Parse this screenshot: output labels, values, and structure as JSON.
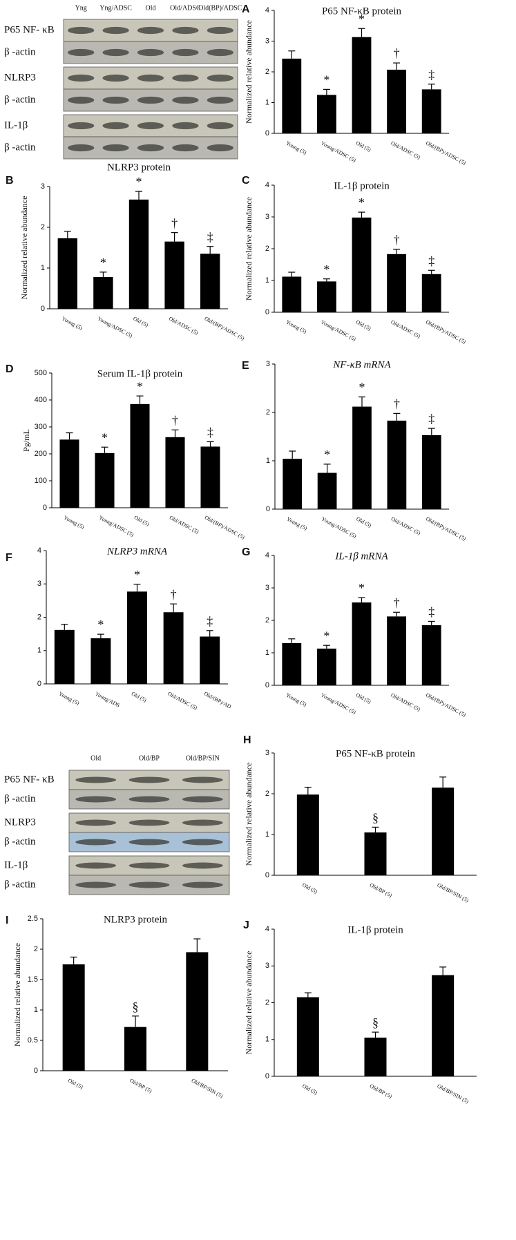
{
  "chart_data": [
    {
      "type": "bar",
      "panel": "A",
      "title": "P65 NF-κB protein",
      "ylabel": "Normalized relative abundance",
      "categories": [
        "Young (5)",
        "Young/ADSC (5)",
        "Old (5)",
        "Old/ADSC (5)",
        "Old/(BP)/ADSC (5)"
      ],
      "values": [
        2.43,
        1.25,
        3.13,
        2.07,
        1.43
      ],
      "errors": [
        0.25,
        0.18,
        0.28,
        0.22,
        0.17
      ],
      "annotations": [
        null,
        "*",
        "*",
        "†",
        "‡"
      ],
      "color": "#000000",
      "ylim": [
        0,
        4
      ],
      "yticks": [
        0,
        1,
        2,
        3,
        4
      ]
    },
    {
      "type": "bar",
      "panel": "B",
      "title": "NLRP3 protein",
      "ylabel": "Normalized relative abundance",
      "categories": [
        "Young (5)",
        "Young/ADSC (5)",
        "Old (5)",
        "Old/ADSC (5)",
        "Old/(BP)/ADSC (5)"
      ],
      "values": [
        1.73,
        0.78,
        2.68,
        1.65,
        1.35
      ],
      "errors": [
        0.17,
        0.12,
        0.2,
        0.22,
        0.18
      ],
      "annotations": [
        null,
        "*",
        "*",
        "†",
        "‡"
      ],
      "color": "#000000",
      "ylim": [
        0,
        3
      ],
      "yticks": [
        0,
        1,
        2,
        3
      ]
    },
    {
      "type": "bar",
      "panel": "C",
      "title": "IL-1β protein",
      "ylabel": "Normalized relative abundance",
      "categories": [
        "Young (5)",
        "Young/ADSC (5)",
        "Old (5)",
        "Old/ADSC (5)",
        "Old/(BP)/ADSC (5)"
      ],
      "values": [
        1.12,
        0.97,
        2.98,
        1.83,
        1.2
      ],
      "errors": [
        0.14,
        0.08,
        0.17,
        0.15,
        0.12
      ],
      "annotations": [
        null,
        "*",
        "*",
        "†",
        "‡"
      ],
      "color": "#000000",
      "ylim": [
        0,
        4
      ],
      "yticks": [
        0,
        1,
        2,
        3,
        4
      ]
    },
    {
      "type": "bar",
      "panel": "D",
      "title": "Serum IL-1β protein",
      "ylabel": "Pg/mL",
      "categories": [
        "Young (5)",
        "Young/ADSC (5)",
        "Old (5)",
        "Old/ADSC (5)",
        "Old/(BP)/ADSC (5)"
      ],
      "values": [
        253,
        203,
        385,
        262,
        227
      ],
      "errors": [
        25,
        22,
        30,
        27,
        18
      ],
      "annotations": [
        null,
        "*",
        "*",
        "†",
        "‡"
      ],
      "color": "#000000",
      "ylim": [
        0,
        500
      ],
      "yticks": [
        0,
        100,
        200,
        300,
        400,
        500
      ]
    },
    {
      "type": "bar",
      "panel": "E",
      "title": "NF-κB mRNA",
      "categories": [
        "Young (5)",
        "Young/ADSC (5)",
        "Old (5)",
        "Old/ADSC (5)",
        "Old/(BP)/ADSC (5)"
      ],
      "values": [
        1.04,
        0.75,
        2.12,
        1.83,
        1.53
      ],
      "errors": [
        0.16,
        0.18,
        0.2,
        0.15,
        0.14
      ],
      "annotations": [
        null,
        "*",
        "*",
        "†",
        "‡"
      ],
      "color": "#000000",
      "ylim": [
        0,
        3
      ],
      "yticks": [
        0,
        1,
        2,
        3
      ]
    },
    {
      "type": "bar",
      "panel": "F",
      "title": "NLRP3 mRNA",
      "categories": [
        "Young (5)",
        "Young/ADS",
        "Old (5)",
        "Old/ADSC (5)",
        "Old/(BP)/AD"
      ],
      "values": [
        1.62,
        1.37,
        2.77,
        2.15,
        1.42
      ],
      "errors": [
        0.17,
        0.12,
        0.22,
        0.25,
        0.18
      ],
      "annotations": [
        null,
        "*",
        "*",
        "†",
        "‡"
      ],
      "color": "#000000",
      "ylim": [
        0,
        4
      ],
      "yticks": [
        0,
        1,
        2,
        3,
        4
      ]
    },
    {
      "type": "bar",
      "panel": "G",
      "title": "IL-1β mRNA",
      "categories": [
        "Young (5)",
        "Young/ADSC (5)",
        "Old (5)",
        "Old/ADSC (5)",
        "Old/(BP)/ADSC (5)"
      ],
      "values": [
        1.3,
        1.13,
        2.55,
        2.12,
        1.85
      ],
      "errors": [
        0.13,
        0.1,
        0.15,
        0.13,
        0.12
      ],
      "annotations": [
        null,
        "*",
        "*",
        "†",
        "‡"
      ],
      "color": "#000000",
      "ylim": [
        0,
        4
      ],
      "yticks": [
        0,
        1,
        2,
        3,
        4
      ]
    },
    {
      "type": "bar",
      "panel": "H",
      "title": "P65 NF-κB protein",
      "ylabel": "Normalized relative abundance",
      "categories": [
        "Old (5)",
        "Old/BP (5)",
        "Old/BP/SIN (5)"
      ],
      "values": [
        1.98,
        1.05,
        2.15
      ],
      "errors": [
        0.18,
        0.13,
        0.26
      ],
      "annotations": [
        null,
        "§",
        null
      ],
      "color": "#000000",
      "ylim": [
        0,
        3
      ],
      "yticks": [
        0,
        1,
        2,
        3
      ]
    },
    {
      "type": "bar",
      "panel": "I",
      "title": "NLRP3 protein",
      "ylabel": "Normalized relative abundance",
      "categories": [
        "Old (5)",
        "Old/BP (5)",
        "Old/BP/SIN (5)"
      ],
      "values": [
        1.75,
        0.72,
        1.95
      ],
      "errors": [
        0.12,
        0.18,
        0.22
      ],
      "annotations": [
        null,
        "§",
        null
      ],
      "color": "#000000",
      "ylim": [
        0,
        2.5
      ],
      "yticks": [
        0,
        0.5,
        1,
        1.5,
        2,
        2.5
      ]
    },
    {
      "type": "bar",
      "panel": "J",
      "title": "IL-1β protein",
      "ylabel": "Normalized relative abundance",
      "categories": [
        "Old (5)",
        "Old/BP (5)",
        "Old/BP/SIN (5)"
      ],
      "values": [
        2.15,
        1.05,
        2.75
      ],
      "errors": [
        0.12,
        0.15,
        0.22
      ],
      "annotations": [
        null,
        "§",
        null
      ],
      "color": "#000000",
      "ylim": [
        0,
        4
      ],
      "yticks": [
        0,
        1,
        2,
        3,
        4
      ]
    }
  ],
  "blots": [
    {
      "columns": [
        "Yng",
        "Yng/ADSC",
        "Old",
        "Old/ADSC",
        "Old(BP)/ADSC"
      ],
      "rows": [
        "P65 NF- κB",
        "β -actin",
        "NLRP3",
        "β -actin",
        "IL-1β",
        "β -actin"
      ]
    },
    {
      "columns": [
        "Old",
        "Old/BP",
        "Old/BP/SIN"
      ],
      "rows": [
        "P65 NF- κB",
        "β -actin",
        "NLRP3",
        "β -actin",
        "IL-1β",
        "β -actin"
      ]
    }
  ]
}
